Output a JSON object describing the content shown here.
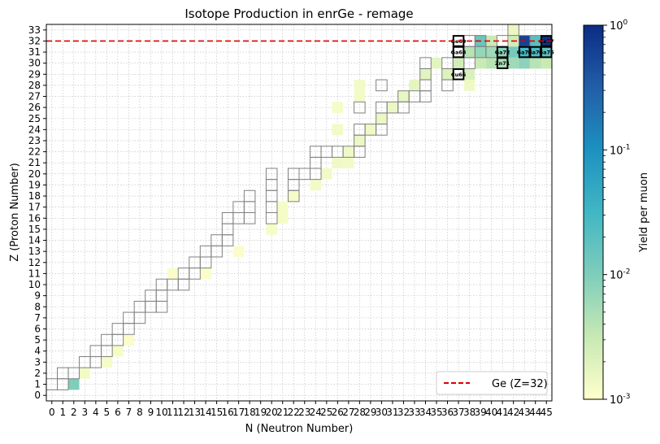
{
  "chart_data": {
    "type": "heatmap",
    "title": "Isotope Production in enrGe - remage",
    "xlabel": "N (Neutron Number)",
    "ylabel": "Z (Proton Number)",
    "xlim": [
      -0.5,
      45.5
    ],
    "ylim": [
      -0.5,
      33.5
    ],
    "x_ticks": [
      0,
      1,
      2,
      3,
      4,
      5,
      6,
      7,
      8,
      9,
      10,
      11,
      12,
      13,
      14,
      15,
      16,
      17,
      18,
      19,
      20,
      21,
      22,
      23,
      24,
      25,
      26,
      27,
      28,
      29,
      30,
      31,
      32,
      33,
      34,
      35,
      36,
      37,
      38,
      39,
      40,
      41,
      42,
      43,
      44,
      45
    ],
    "y_ticks": [
      0,
      1,
      2,
      3,
      4,
      5,
      6,
      7,
      8,
      9,
      10,
      11,
      12,
      13,
      14,
      15,
      16,
      17,
      18,
      19,
      20,
      21,
      22,
      23,
      24,
      25,
      26,
      27,
      28,
      29,
      30,
      31,
      32,
      33
    ],
    "grid": true,
    "legend": {
      "position": "lower-right",
      "label": "Ge (Z=32)"
    },
    "reference_line": {
      "z": 32,
      "color": "#dd0000"
    },
    "colorbar": {
      "label": "Yield per muon",
      "scale": "log",
      "range": [
        0.001,
        1
      ],
      "ticks": [
        {
          "value": 1,
          "label": "10^0"
        },
        {
          "value": 0.1,
          "label": "10^-1"
        },
        {
          "value": 0.01,
          "label": "10^-2"
        },
        {
          "value": 0.001,
          "label": "10^-3"
        }
      ],
      "colors": [
        "#ffffcc",
        "#c7e9b4",
        "#7fcdbb",
        "#41b6c4",
        "#1d91c0",
        "#225ea8",
        "#0c2c84"
      ]
    },
    "yield_cells": [
      {
        "n": 2,
        "z": 1,
        "yield": 0.01
      },
      {
        "n": 3,
        "z": 2,
        "yield": 0.0013
      },
      {
        "n": 5,
        "z": 3,
        "yield": 0.0012
      },
      {
        "n": 6,
        "z": 4,
        "yield": 0.0012
      },
      {
        "n": 7,
        "z": 5,
        "yield": 0.0011
      },
      {
        "n": 11,
        "z": 11,
        "yield": 0.0011
      },
      {
        "n": 14,
        "z": 11,
        "yield": 0.0011
      },
      {
        "n": 17,
        "z": 13,
        "yield": 0.0011
      },
      {
        "n": 20,
        "z": 15,
        "yield": 0.0012
      },
      {
        "n": 21,
        "z": 16,
        "yield": 0.0012
      },
      {
        "n": 21,
        "z": 17,
        "yield": 0.0012
      },
      {
        "n": 22,
        "z": 18,
        "yield": 0.0012
      },
      {
        "n": 24,
        "z": 19,
        "yield": 0.0013
      },
      {
        "n": 25,
        "z": 20,
        "yield": 0.0013
      },
      {
        "n": 26,
        "z": 21,
        "yield": 0.0014
      },
      {
        "n": 27,
        "z": 21,
        "yield": 0.0013
      },
      {
        "n": 27,
        "z": 22,
        "yield": 0.0014
      },
      {
        "n": 28,
        "z": 23,
        "yield": 0.0015
      },
      {
        "n": 26,
        "z": 24,
        "yield": 0.0013
      },
      {
        "n": 29,
        "z": 24,
        "yield": 0.0014
      },
      {
        "n": 30,
        "z": 25,
        "yield": 0.0015
      },
      {
        "n": 31,
        "z": 26,
        "yield": 0.0015
      },
      {
        "n": 26,
        "z": 26,
        "yield": 0.0012
      },
      {
        "n": 32,
        "z": 27,
        "yield": 0.0016
      },
      {
        "n": 28,
        "z": 27,
        "yield": 0.0013
      },
      {
        "n": 33,
        "z": 28,
        "yield": 0.0017
      },
      {
        "n": 28,
        "z": 28,
        "yield": 0.0013
      },
      {
        "n": 34,
        "z": 29,
        "yield": 0.0018
      },
      {
        "n": 36,
        "z": 29,
        "yield": 0.002
      },
      {
        "n": 35,
        "z": 30,
        "yield": 0.0018
      },
      {
        "n": 37,
        "z": 30,
        "yield": 0.0025
      },
      {
        "n": 38,
        "z": 28,
        "yield": 0.0014
      },
      {
        "n": 38,
        "z": 29,
        "yield": 0.0022
      },
      {
        "n": 38,
        "z": 31,
        "yield": 0.004
      },
      {
        "n": 39,
        "z": 30,
        "yield": 0.003
      },
      {
        "n": 39,
        "z": 31,
        "yield": 0.007
      },
      {
        "n": 39,
        "z": 32,
        "yield": 0.015
      },
      {
        "n": 40,
        "z": 30,
        "yield": 0.004
      },
      {
        "n": 40,
        "z": 31,
        "yield": 0.006
      },
      {
        "n": 40,
        "z": 32,
        "yield": 0.003
      },
      {
        "n": 41,
        "z": 30,
        "yield": 0.005
      },
      {
        "n": 41,
        "z": 31,
        "yield": 0.008
      },
      {
        "n": 42,
        "z": 30,
        "yield": 0.006
      },
      {
        "n": 42,
        "z": 31,
        "yield": 0.012
      },
      {
        "n": 42,
        "z": 32,
        "yield": 0.0025
      },
      {
        "n": 42,
        "z": 33,
        "yield": 0.0015
      },
      {
        "n": 43,
        "z": 30,
        "yield": 0.008
      },
      {
        "n": 43,
        "z": 31,
        "yield": 0.03
      },
      {
        "n": 43,
        "z": 32,
        "yield": 0.6
      },
      {
        "n": 44,
        "z": 30,
        "yield": 0.004
      },
      {
        "n": 44,
        "z": 31,
        "yield": 0.025
      },
      {
        "n": 44,
        "z": 32,
        "yield": 0.02
      },
      {
        "n": 45,
        "z": 30,
        "yield": 0.003
      },
      {
        "n": 45,
        "z": 31,
        "yield": 0.02
      },
      {
        "n": 45,
        "z": 32,
        "yield": 0.9
      }
    ],
    "outlined_nuclides": [
      [
        0,
        1
      ],
      [
        1,
        1
      ],
      [
        1,
        2
      ],
      [
        2,
        2
      ],
      [
        3,
        3
      ],
      [
        4,
        3
      ],
      [
        4,
        4
      ],
      [
        5,
        4
      ],
      [
        5,
        5
      ],
      [
        6,
        5
      ],
      [
        6,
        6
      ],
      [
        7,
        6
      ],
      [
        7,
        7
      ],
      [
        8,
        7
      ],
      [
        8,
        8
      ],
      [
        9,
        8
      ],
      [
        9,
        9
      ],
      [
        10,
        8
      ],
      [
        10,
        9
      ],
      [
        10,
        10
      ],
      [
        11,
        10
      ],
      [
        12,
        10
      ],
      [
        12,
        11
      ],
      [
        13,
        11
      ],
      [
        13,
        12
      ],
      [
        14,
        12
      ],
      [
        14,
        13
      ],
      [
        15,
        13
      ],
      [
        15,
        14
      ],
      [
        16,
        14
      ],
      [
        16,
        15
      ],
      [
        16,
        16
      ],
      [
        17,
        16
      ],
      [
        17,
        17
      ],
      [
        18,
        16
      ],
      [
        18,
        17
      ],
      [
        18,
        18
      ],
      [
        20,
        16
      ],
      [
        20,
        17
      ],
      [
        20,
        18
      ],
      [
        20,
        19
      ],
      [
        20,
        20
      ],
      [
        22,
        18
      ],
      [
        22,
        19
      ],
      [
        22,
        20
      ],
      [
        23,
        20
      ],
      [
        24,
        20
      ],
      [
        24,
        21
      ],
      [
        24,
        22
      ],
      [
        25,
        22
      ],
      [
        26,
        22
      ],
      [
        27,
        22
      ],
      [
        28,
        22
      ],
      [
        28,
        23
      ],
      [
        28,
        24
      ],
      [
        29,
        24
      ],
      [
        30,
        24
      ],
      [
        30,
        25
      ],
      [
        30,
        26
      ],
      [
        31,
        26
      ],
      [
        32,
        26
      ],
      [
        32,
        27
      ],
      [
        33,
        27
      ],
      [
        34,
        27
      ],
      [
        34,
        28
      ],
      [
        34,
        29
      ],
      [
        34,
        30
      ],
      [
        30,
        28
      ],
      [
        28,
        26
      ],
      [
        36,
        28
      ],
      [
        36,
        29
      ],
      [
        36,
        30
      ],
      [
        37,
        30
      ],
      [
        37,
        31
      ],
      [
        38,
        30
      ],
      [
        38,
        31
      ],
      [
        38,
        32
      ],
      [
        39,
        31
      ],
      [
        39,
        32
      ],
      [
        40,
        31
      ],
      [
        41,
        32
      ],
      [
        42,
        33
      ],
      [
        43,
        32
      ],
      [
        44,
        31
      ],
      [
        44,
        32
      ],
      [
        45,
        31
      ]
    ],
    "highlighted": [
      {
        "n": 37,
        "z": 32,
        "label": "Ge69"
      },
      {
        "n": 37,
        "z": 31,
        "label": "Ga68"
      },
      {
        "n": 37,
        "z": 29,
        "label": "Cu66"
      },
      {
        "n": 41,
        "z": 31,
        "label": "Ga72"
      },
      {
        "n": 41,
        "z": 30,
        "label": "Zn71"
      },
      {
        "n": 43,
        "z": 31,
        "label": "Ga74"
      },
      {
        "n": 44,
        "z": 31,
        "label": "Ga75"
      },
      {
        "n": 45,
        "z": 31,
        "label": "Ga76"
      },
      {
        "n": 45,
        "z": 32,
        "label": "Ge77"
      }
    ]
  }
}
